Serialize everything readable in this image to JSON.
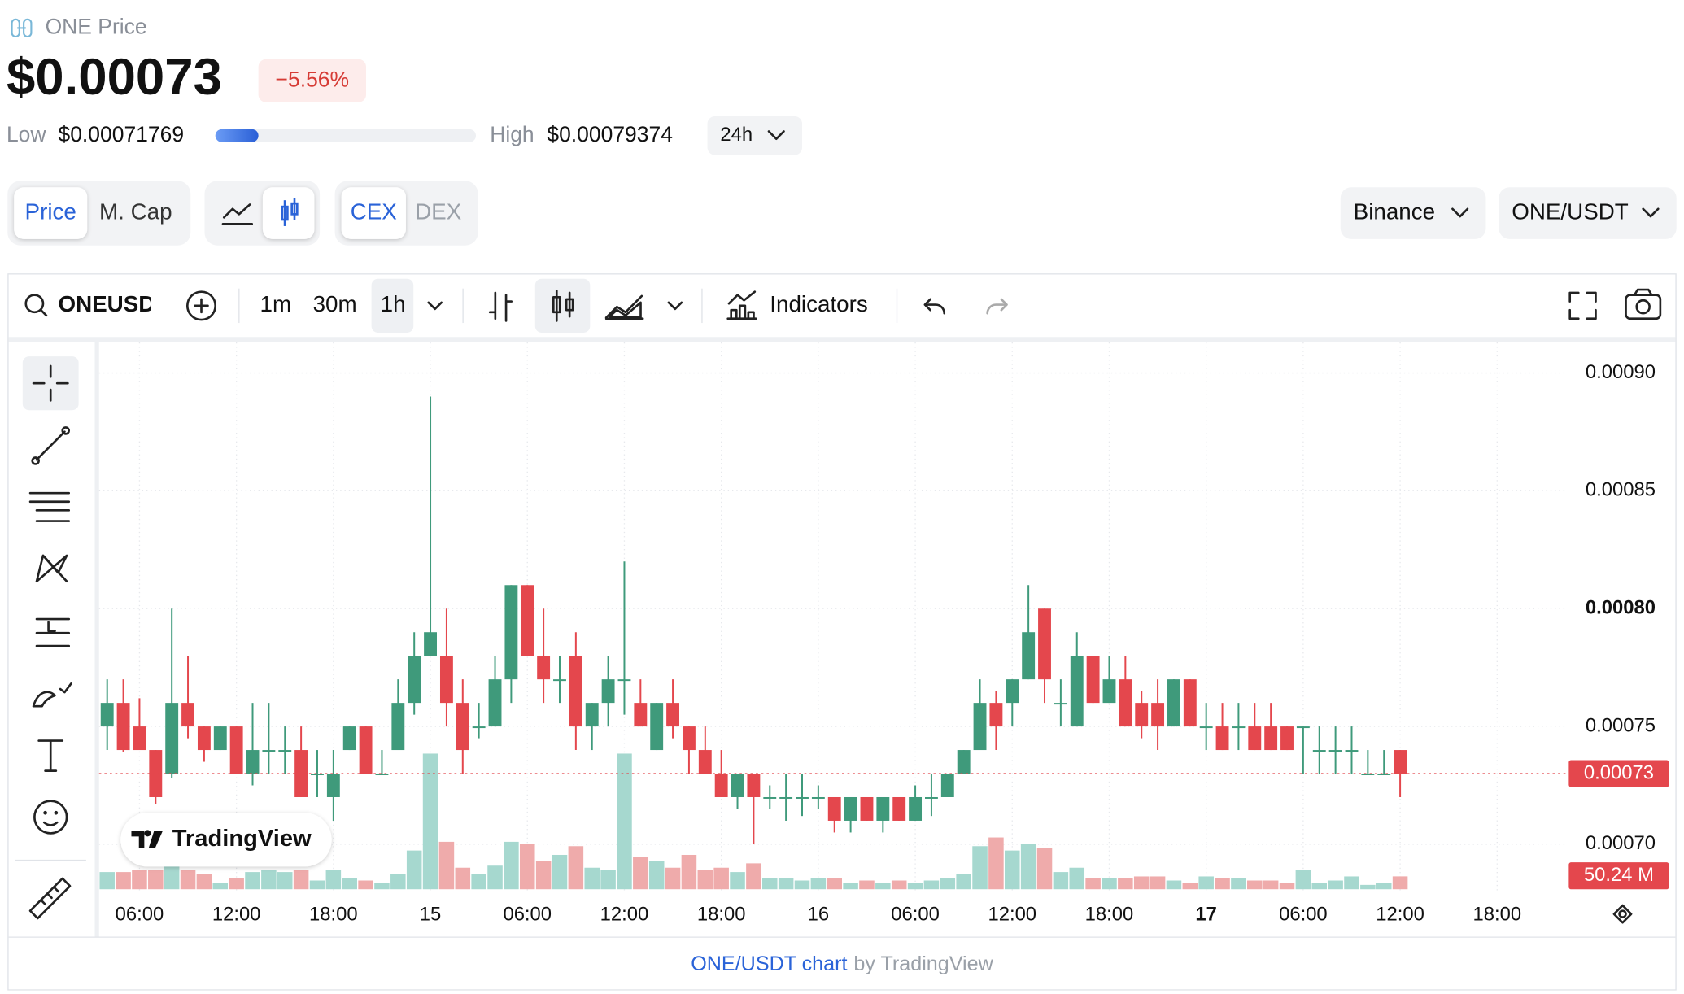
{
  "header": {
    "name": "ONE Price",
    "price": "$0.00073",
    "change": "−5.56%",
    "low_label": "Low",
    "low": "$0.00071769",
    "high_label": "High",
    "high": "$0.00079374",
    "range": "24h"
  },
  "tabs": {
    "metric": [
      "Price",
      "M. Cap"
    ],
    "market": [
      "CEX",
      "DEX"
    ],
    "exchange": "Binance",
    "pair": "ONE/USDT"
  },
  "toolbar": {
    "symbol": "ONEUSDT",
    "intervals": [
      "1m",
      "30m",
      "1h"
    ],
    "indicators": "Indicators"
  },
  "watermark": "TradingView",
  "footer": {
    "link": "ONE/USDT chart",
    "by": "by TradingView"
  },
  "chart_data": {
    "type": "candlestick",
    "xlim": [
      -0.5,
      90.3
    ],
    "xticks": [
      {
        "value": 2,
        "label": "06:00"
      },
      {
        "value": 8,
        "label": "12:00"
      },
      {
        "value": 14,
        "label": "18:00"
      },
      {
        "value": 20,
        "label": "15"
      },
      {
        "value": 26,
        "label": "06:00"
      },
      {
        "value": 32,
        "label": "12:00"
      },
      {
        "value": 38,
        "label": "18:00"
      },
      {
        "value": 44,
        "label": "16"
      },
      {
        "value": 50,
        "label": "06:00"
      },
      {
        "value": 56,
        "label": "12:00"
      },
      {
        "value": 62,
        "label": "18:00"
      },
      {
        "value": 68,
        "label": "17"
      },
      {
        "value": 74,
        "label": "06:00"
      },
      {
        "value": 80,
        "label": "12:00"
      },
      {
        "value": 86,
        "label": "18:00"
      }
    ],
    "ylim": [
      0.00068,
      0.000913
    ],
    "yticks": [
      {
        "value": 0.0009,
        "label": "0.00090"
      },
      0.00085,
      {
        "value": 0.0008,
        "label": "0.00080"
      },
      0.00075,
      {
        "value": 0.0007,
        "label": "0.00070"
      }
    ],
    "grid": true,
    "up_color": "#3f9a7b",
    "down_color": "#e4474d",
    "volume_up_color": "#a6d8cf",
    "volume_down_color": "#efabab",
    "last_price_label": "0.00073",
    "last_volume_label": "50.24 M",
    "open": [
      0.00075,
      0.00076,
      0.00075,
      0.00074,
      0.00073,
      0.00076,
      0.00075,
      0.00074,
      0.00075,
      0.00073,
      0.00074,
      0.00074,
      0.00074,
      0.00073,
      0.00072,
      0.00074,
      0.00075,
      0.00073,
      0.00074,
      0.00076,
      0.00078,
      0.00078,
      0.00076,
      0.00075,
      0.00075,
      0.00077,
      0.00081,
      0.00078,
      0.00077,
      0.00078,
      0.00075,
      0.00076,
      0.00077,
      0.00076,
      0.00074,
      0.00076,
      0.00075,
      0.00074,
      0.00073,
      0.00072,
      0.00073,
      0.00072,
      0.00072,
      0.00072,
      0.00072,
      0.00072,
      0.00071,
      0.00072,
      0.00071,
      0.00072,
      0.00071,
      0.00072,
      0.00072,
      0.00073,
      0.00074,
      0.00076,
      0.00076,
      0.00077,
      0.0008,
      0.00076,
      0.00075,
      0.00078,
      0.00076,
      0.00077,
      0.00076,
      0.00076,
      0.00075,
      0.00077,
      0.00075,
      0.00075,
      0.00075,
      0.00075,
      0.00075,
      0.00075,
      0.00075,
      0.00074,
      0.00074,
      0.00074,
      0.00073,
      0.00073,
      0.00074
    ],
    "high": [
      0.00077,
      0.00077,
      0.000762,
      0.00074,
      0.0008,
      0.00078,
      0.00075,
      0.00075,
      0.00075,
      0.00076,
      0.00076,
      0.00075,
      0.00075,
      0.00074,
      0.00074,
      0.00075,
      0.00075,
      0.00074,
      0.00077,
      0.00079,
      0.00089,
      0.0008,
      0.00077,
      0.00076,
      0.00078,
      0.00081,
      0.00081,
      0.0008,
      0.00078,
      0.00079,
      0.00076,
      0.00078,
      0.00082,
      0.00077,
      0.00076,
      0.00077,
      0.00075,
      0.00075,
      0.00074,
      0.00073,
      0.00073,
      0.000725,
      0.00073,
      0.00073,
      0.000725,
      0.00072,
      0.00072,
      0.00072,
      0.00072,
      0.00072,
      0.000725,
      0.00073,
      0.00073,
      0.00074,
      0.00077,
      0.000765,
      0.00077,
      0.00081,
      0.0008,
      0.00077,
      0.00079,
      0.00078,
      0.00078,
      0.00078,
      0.000765,
      0.00077,
      0.00077,
      0.00077,
      0.00076,
      0.00076,
      0.00076,
      0.00076,
      0.00076,
      0.00075,
      0.00075,
      0.00075,
      0.00075,
      0.00075,
      0.00074,
      0.00074,
      0.00074
    ],
    "low": [
      0.00074,
      0.000739,
      0.00074,
      0.000717,
      0.000728,
      0.000745,
      0.000735,
      0.00074,
      0.00073,
      0.000725,
      0.00073,
      0.00073,
      0.00072,
      0.00072,
      0.00071,
      0.00074,
      0.00073,
      0.00073,
      0.00074,
      0.000755,
      0.00078,
      0.00075,
      0.00073,
      0.000745,
      0.00075,
      0.00076,
      0.00078,
      0.00076,
      0.00076,
      0.00074,
      0.00074,
      0.00075,
      0.000755,
      0.00075,
      0.00074,
      0.000745,
      0.00073,
      0.00073,
      0.00072,
      0.000715,
      0.0007,
      0.000715,
      0.00071,
      0.000712,
      0.000715,
      0.000705,
      0.000705,
      0.00071,
      0.000705,
      0.00071,
      0.00071,
      0.000712,
      0.00072,
      0.00073,
      0.00074,
      0.00074,
      0.00075,
      0.00077,
      0.00076,
      0.00075,
      0.00075,
      0.00076,
      0.00076,
      0.00075,
      0.000745,
      0.00074,
      0.00075,
      0.00075,
      0.00074,
      0.00074,
      0.00074,
      0.00074,
      0.00074,
      0.00074,
      0.00073,
      0.00073,
      0.00073,
      0.00073,
      0.00073,
      0.00073,
      0.00072
    ],
    "close": [
      0.00076,
      0.00074,
      0.00074,
      0.00072,
      0.00076,
      0.00075,
      0.00074,
      0.00075,
      0.00073,
      0.00074,
      0.00074,
      0.00074,
      0.00072,
      0.00073,
      0.00073,
      0.00075,
      0.00073,
      0.00073,
      0.00076,
      0.00078,
      0.00079,
      0.00076,
      0.00074,
      0.00075,
      0.00077,
      0.00081,
      0.00078,
      0.00077,
      0.00077,
      0.00075,
      0.00076,
      0.00077,
      0.00077,
      0.00075,
      0.00076,
      0.00075,
      0.00074,
      0.00073,
      0.00072,
      0.00073,
      0.00072,
      0.00072,
      0.00072,
      0.00072,
      0.00072,
      0.00071,
      0.00072,
      0.00071,
      0.00072,
      0.00071,
      0.00072,
      0.00072,
      0.00073,
      0.00074,
      0.00076,
      0.00075,
      0.00077,
      0.00079,
      0.00077,
      0.00076,
      0.00078,
      0.00076,
      0.00077,
      0.00075,
      0.00075,
      0.00075,
      0.00077,
      0.00075,
      0.00075,
      0.00074,
      0.00075,
      0.00074,
      0.00074,
      0.00074,
      0.00075,
      0.00074,
      0.00074,
      0.00074,
      0.00073,
      0.00073,
      0.00073
    ],
    "volume": [
      67,
      67,
      76,
      76,
      101,
      76,
      59,
      25,
      42,
      67,
      76,
      67,
      76,
      34,
      76,
      42,
      34,
      25,
      59,
      151,
      529,
      185,
      84,
      59,
      92,
      185,
      176,
      109,
      134,
      168,
      84,
      76,
      529,
      126,
      109,
      84,
      134,
      76,
      84,
      67,
      101,
      42,
      42,
      34,
      42,
      42,
      25,
      34,
      25,
      34,
      25,
      34,
      42,
      59,
      168,
      202,
      151,
      176,
      160,
      67,
      84,
      42,
      42,
      42,
      50,
      50,
      34,
      25,
      50,
      42,
      42,
      34,
      34,
      25,
      76,
      25,
      34,
      50,
      17,
      25,
      50.24
    ]
  }
}
